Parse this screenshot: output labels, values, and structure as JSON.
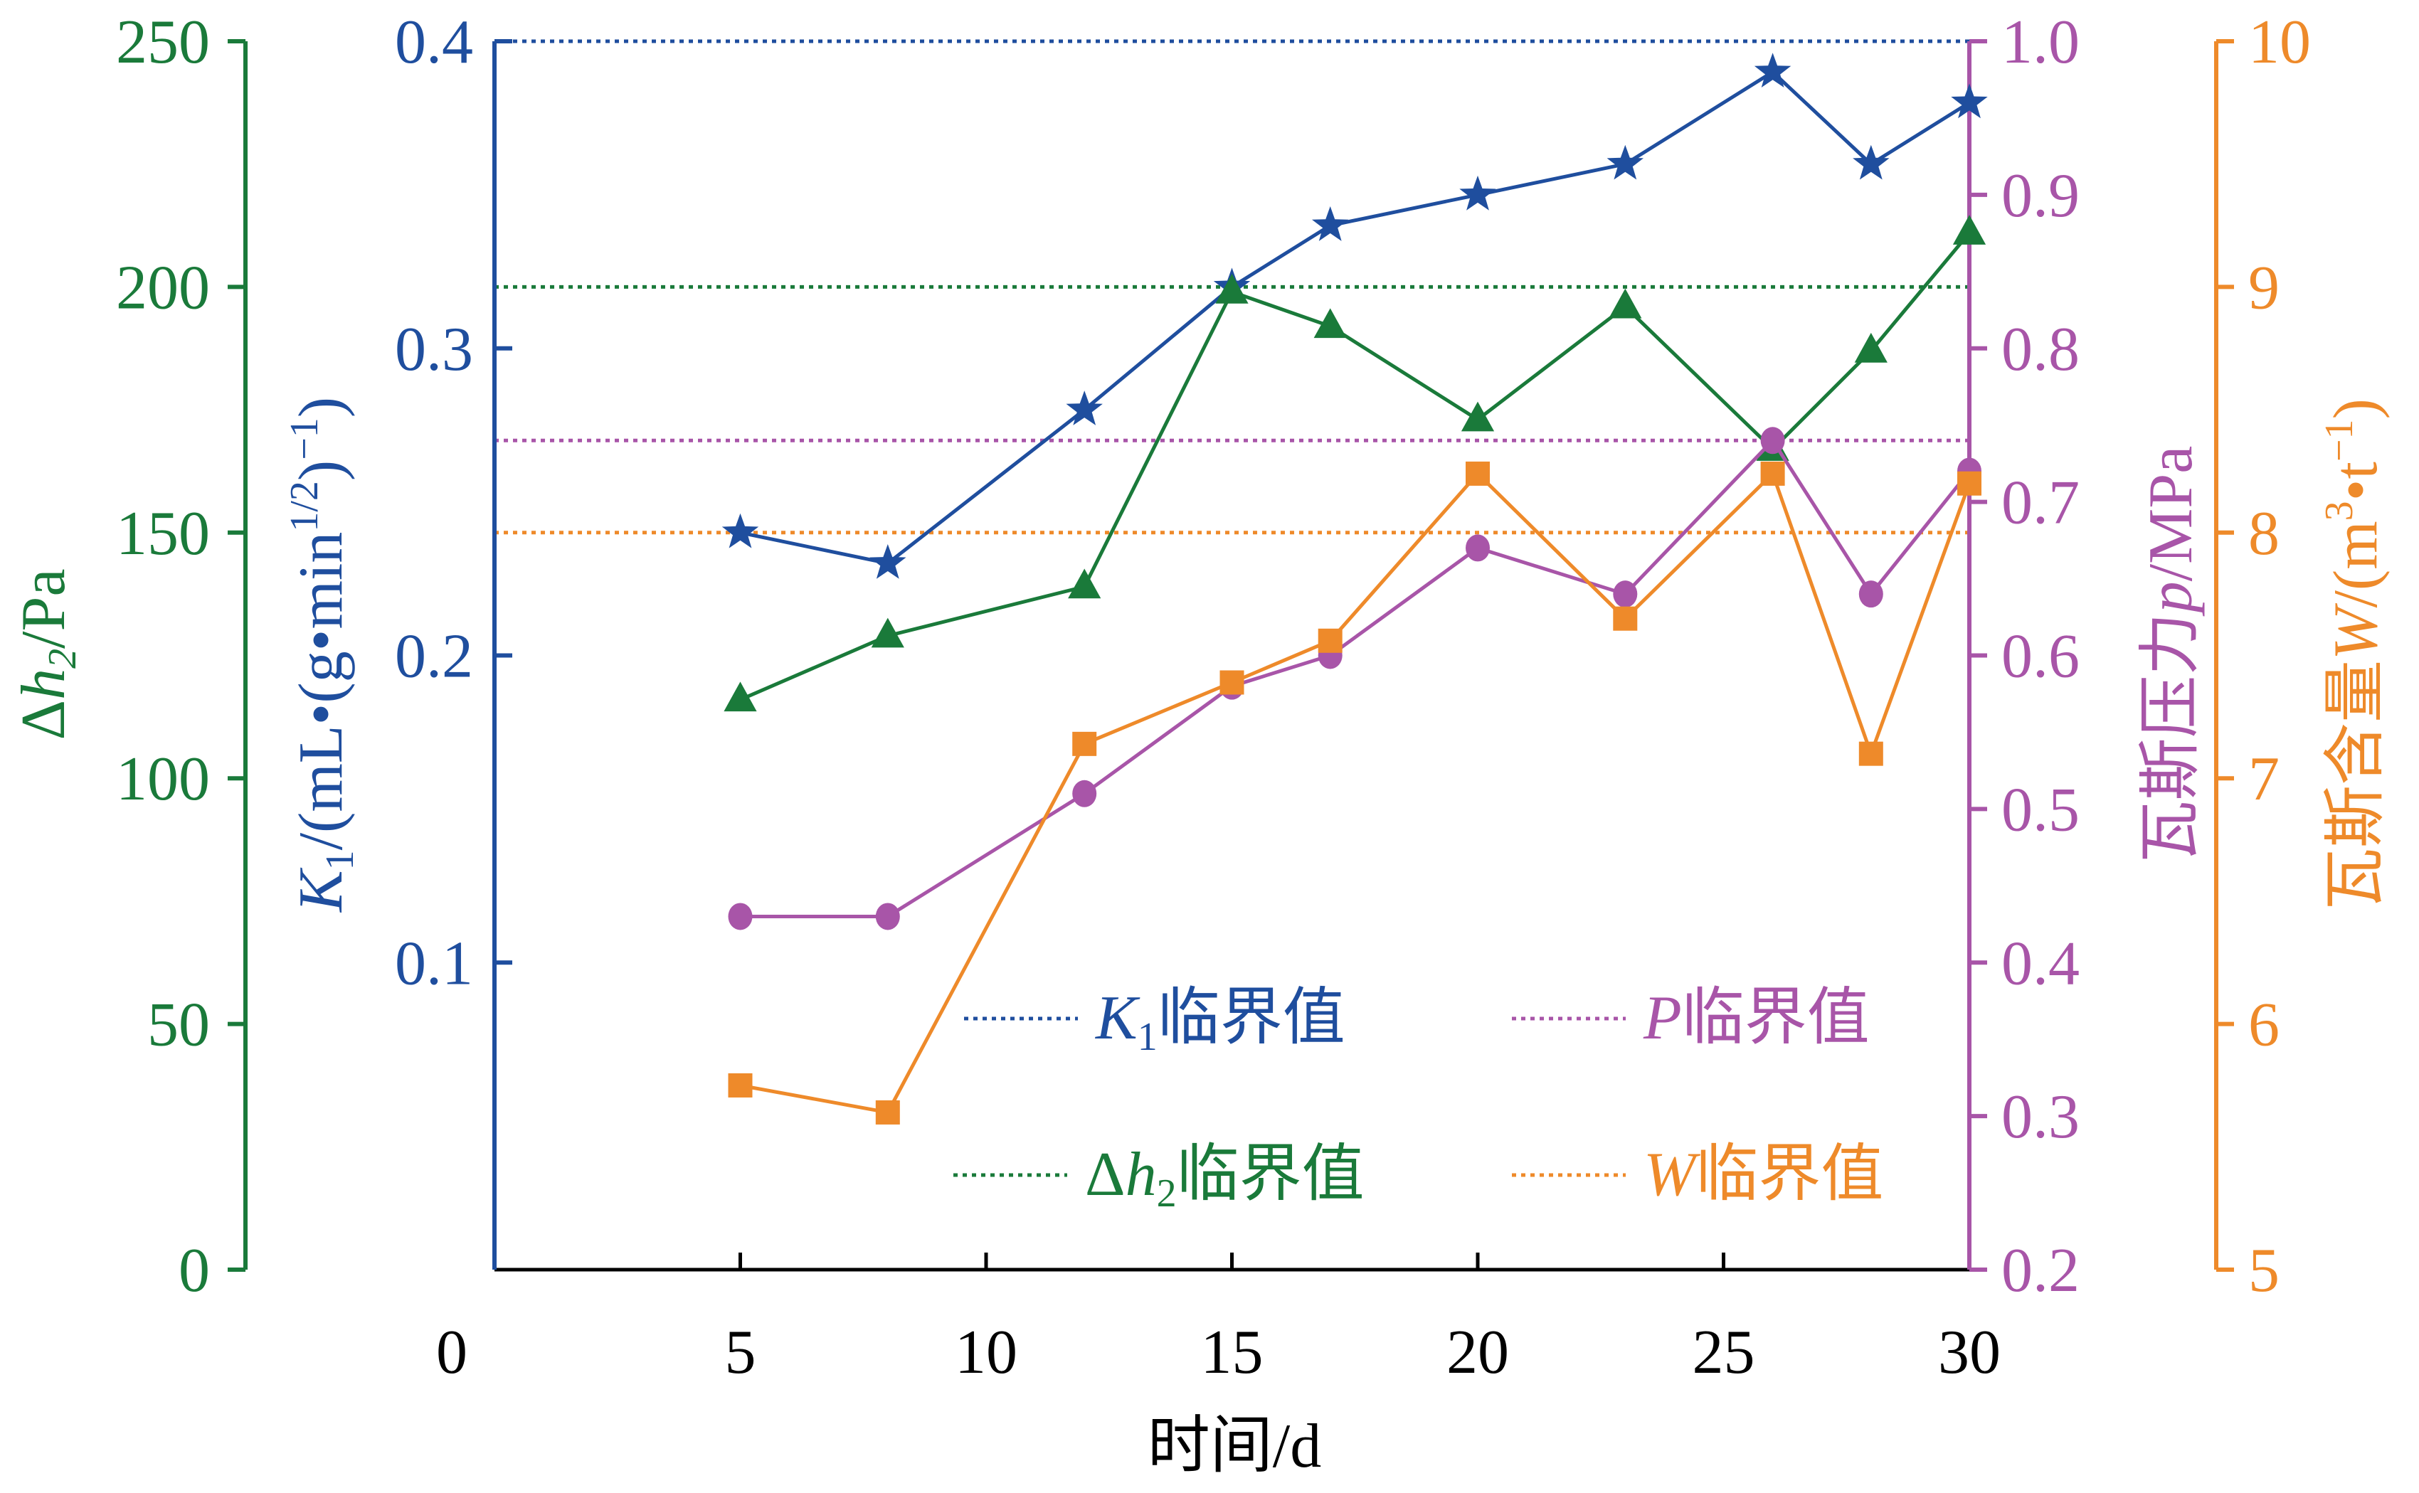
{
  "chart_data": {
    "type": "line",
    "xlabel": "时间/d",
    "xlim": [
      0,
      30
    ],
    "xticks": [
      0,
      5,
      10,
      15,
      20,
      25,
      30
    ],
    "axes": {
      "dh2": {
        "label_prefix": "Δ",
        "label_var": "h",
        "label_sub": "2",
        "label_suffix": "/Pa",
        "ylim": [
          0,
          250
        ],
        "ticks": [
          0,
          50,
          100,
          150,
          200,
          250
        ],
        "color": "#1a7a3a"
      },
      "k1": {
        "label_var": "K",
        "label_sub": "1",
        "label_unit_a": "/(mL•(g•min",
        "label_sup1": "1/2",
        "label_unit_b": ")",
        "label_sup2": "−1",
        "label_unit_c": ")",
        "ylim": [
          0,
          0.4
        ],
        "ticks": [
          "0.1",
          "0.2",
          "0.3",
          "0.4"
        ],
        "color": "#1f4e9e"
      },
      "p": {
        "label_text": "瓦斯压力",
        "label_var": "p",
        "label_unit": "/MPa",
        "ylim": [
          0.2,
          1.0
        ],
        "ticks": [
          "0.2",
          "0.3",
          "0.4",
          "0.5",
          "0.6",
          "0.7",
          "0.8",
          "0.9",
          "1.0"
        ],
        "color": "#a855a8"
      },
      "w": {
        "label_text": "瓦斯含量",
        "label_var": "W",
        "label_unit_a": "/(m",
        "label_sup1": "3",
        "label_unit_b": "•t",
        "label_sup2": "−1",
        "label_unit_c": ")",
        "ylim": [
          5,
          10
        ],
        "ticks": [
          "5",
          "6",
          "7",
          "8",
          "9",
          "10"
        ],
        "color": "#ee8a2a"
      }
    },
    "series": [
      {
        "axis": "k1",
        "marker": "star",
        "x": [
          5,
          8,
          12,
          15,
          17,
          20,
          23,
          26,
          28,
          30
        ],
        "y": [
          0.24,
          0.23,
          0.28,
          0.32,
          0.34,
          0.35,
          0.36,
          0.39,
          0.36,
          0.38
        ]
      },
      {
        "axis": "dh2",
        "marker": "triangle",
        "x": [
          5,
          8,
          12,
          15,
          17,
          20,
          23,
          26,
          28,
          30
        ],
        "y": [
          116,
          129,
          139,
          199,
          192,
          173,
          196,
          167,
          187,
          211
        ]
      },
      {
        "axis": "p",
        "marker": "circle",
        "x": [
          5,
          8,
          12,
          15,
          17,
          20,
          23,
          26,
          28,
          30
        ],
        "y": [
          0.43,
          0.43,
          0.51,
          0.58,
          0.6,
          0.67,
          0.64,
          0.74,
          0.64,
          0.72
        ]
      },
      {
        "axis": "w",
        "marker": "square",
        "x": [
          5,
          8,
          12,
          15,
          17,
          20,
          23,
          26,
          28,
          30
        ],
        "y": [
          5.75,
          5.64,
          7.14,
          7.39,
          7.56,
          8.24,
          7.65,
          8.24,
          7.1,
          8.2
        ]
      }
    ],
    "thresholds": [
      {
        "axis": "k1",
        "value": 0.4,
        "name_var": "K",
        "name_sub": "1",
        "name_text": "临界值"
      },
      {
        "axis": "dh2",
        "value": 200,
        "name_pre": "Δ",
        "name_var": "h",
        "name_sub": "2",
        "name_text": "临界值"
      },
      {
        "axis": "p",
        "value": 0.74,
        "name_var": "P",
        "name_text": "临界值"
      },
      {
        "axis": "w",
        "value": 8.0,
        "name_var": "W",
        "name_text": "临界值"
      }
    ],
    "legend_position": "lower-right"
  }
}
